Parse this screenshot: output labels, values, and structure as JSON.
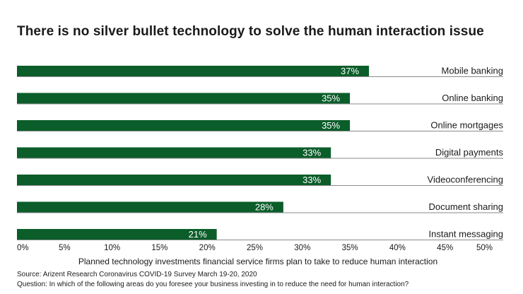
{
  "chart_data": {
    "type": "bar",
    "orientation": "horizontal",
    "title": "There is no silver bullet technology to solve the human interaction issue",
    "categories": [
      "Mobile banking",
      "Online banking",
      "Online mortgages",
      "Digital payments",
      "Videoconferencing",
      "Document sharing",
      "Instant messaging"
    ],
    "values": [
      37,
      35,
      35,
      33,
      33,
      28,
      21
    ],
    "data_labels": [
      "37%",
      "35%",
      "35%",
      "33%",
      "33%",
      "28%",
      "21%"
    ],
    "xlabel": "Planned technology investments financial service firms plan to take to reduce human interaction",
    "ylabel": "",
    "xlim": [
      0,
      50
    ],
    "x_ticks": [
      0,
      5,
      10,
      15,
      20,
      25,
      30,
      35,
      40,
      45,
      50
    ],
    "x_tick_labels": [
      "0%",
      "5%",
      "10%",
      "15%",
      "20%",
      "25%",
      "30%",
      "35%",
      "40%",
      "45%",
      "50%"
    ],
    "grid": false,
    "bar_color": "#0b5d2a",
    "separator_color": "#8a8a8a"
  },
  "footnotes": {
    "source": "Source: Arizent Research Coronavirus COVID-19 Survey March 19-20, 2020",
    "question": "Question: In which of the following areas do you foresee your business investing in to reduce the need for human interaction?"
  }
}
